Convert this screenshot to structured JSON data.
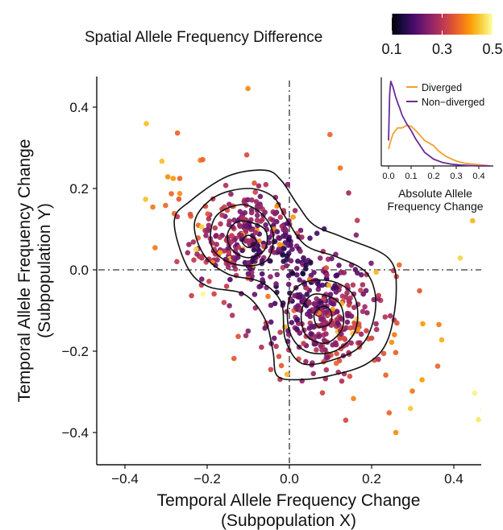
{
  "chart_data": {
    "type": "scatter",
    "xlabel_line1": "Temporal Allele Frequency Change",
    "xlabel_line2": "(Subpopulation X)",
    "ylabel_line1": "Temporal Allele Frequency Change",
    "ylabel_line2": "(Subpopulation Y)",
    "xlim": [
      -0.47,
      0.47
    ],
    "ylim": [
      -0.47,
      0.47
    ],
    "xticks": [
      -0.4,
      -0.2,
      0.0,
      0.2,
      0.4
    ],
    "yticks": [
      -0.4,
      -0.2,
      0.0,
      0.2,
      0.4
    ],
    "xtick_labels": [
      "−0.4",
      "−0.2",
      "0.0",
      "0.2",
      "0.4"
    ],
    "ytick_labels": [
      "−0.4",
      "−0.2",
      "0.0",
      "0.2",
      "0.4"
    ],
    "reference_lines": {
      "x": 0.0,
      "y": 0.0,
      "style": "dash-dot"
    },
    "colorbar": {
      "title": "Spatial Allele Frequency Difference",
      "range": [
        0.1,
        0.5
      ],
      "tick_values": [
        0.1,
        0.3,
        0.5
      ],
      "tick_labels": [
        "0.1",
        "0.3",
        "0.5"
      ],
      "colormap": "inferno",
      "stops": [
        "#000004",
        "#1b0c41",
        "#4a0c6b",
        "#781c6d",
        "#a52c60",
        "#cf4446",
        "#ed6925",
        "#fb9b06",
        "#f7d13d",
        "#fcffa4"
      ]
    },
    "clusters": [
      {
        "center": [
          -0.1,
          0.07
        ],
        "spread": [
          0.07,
          0.06
        ],
        "count": 260
      },
      {
        "center": [
          0.08,
          -0.11
        ],
        "spread": [
          0.06,
          0.07
        ],
        "count": 280
      }
    ],
    "scattered_background": {
      "x_range": [
        -0.33,
        0.46
      ],
      "y_range": [
        -0.38,
        0.46
      ],
      "count": 190
    },
    "contours": [
      {
        "level": 1,
        "points": [
          [
            -0.06,
            0.245
          ],
          [
            -0.15,
            0.23
          ],
          [
            -0.24,
            0.17
          ],
          [
            -0.28,
            0.12
          ],
          [
            -0.25,
            0.01
          ],
          [
            -0.2,
            -0.04
          ],
          [
            -0.11,
            -0.06
          ],
          [
            -0.06,
            -0.12
          ],
          [
            -0.04,
            -0.2
          ],
          [
            -0.03,
            -0.26
          ],
          [
            0.02,
            -0.27
          ],
          [
            0.1,
            -0.26
          ],
          [
            0.19,
            -0.23
          ],
          [
            0.24,
            -0.17
          ],
          [
            0.26,
            -0.05
          ],
          [
            0.24,
            0.03
          ],
          [
            0.13,
            0.08
          ],
          [
            0.06,
            0.11
          ],
          [
            0.02,
            0.16
          ],
          [
            -0.02,
            0.22
          ]
        ]
      },
      {
        "level": 2,
        "points": [
          [
            -0.1,
            0.2
          ],
          [
            -0.18,
            0.18
          ],
          [
            -0.23,
            0.12
          ],
          [
            -0.21,
            0.04
          ],
          [
            -0.15,
            -0.01
          ],
          [
            -0.07,
            -0.03
          ],
          [
            -0.02,
            -0.08
          ],
          [
            -0.01,
            -0.17
          ],
          [
            0.03,
            -0.23
          ],
          [
            0.11,
            -0.22
          ],
          [
            0.18,
            -0.18
          ],
          [
            0.21,
            -0.09
          ],
          [
            0.19,
            -0.01
          ],
          [
            0.12,
            0.03
          ],
          [
            0.04,
            0.06
          ],
          [
            -0.01,
            0.13
          ],
          [
            -0.04,
            0.18
          ]
        ]
      },
      {
        "level": 3,
        "points": [
          [
            -0.12,
            0.16
          ],
          [
            -0.18,
            0.13
          ],
          [
            -0.19,
            0.06
          ],
          [
            -0.15,
            0.02
          ],
          [
            -0.09,
            0.01
          ],
          [
            -0.05,
            0.03
          ],
          [
            -0.04,
            0.09
          ],
          [
            -0.07,
            0.14
          ]
        ]
      },
      {
        "level": 3,
        "points": [
          [
            0.04,
            -0.03
          ],
          [
            0.0,
            -0.07
          ],
          [
            0.0,
            -0.15
          ],
          [
            0.04,
            -0.2
          ],
          [
            0.11,
            -0.2
          ],
          [
            0.16,
            -0.15
          ],
          [
            0.16,
            -0.07
          ],
          [
            0.11,
            -0.03
          ]
        ]
      },
      {
        "level": 4,
        "points": [
          [
            -0.12,
            0.12
          ],
          [
            -0.15,
            0.09
          ],
          [
            -0.14,
            0.05
          ],
          [
            -0.1,
            0.03
          ],
          [
            -0.06,
            0.05
          ],
          [
            -0.06,
            0.1
          ]
        ]
      },
      {
        "level": 4,
        "points": [
          [
            0.06,
            -0.06
          ],
          [
            0.03,
            -0.1
          ],
          [
            0.04,
            -0.16
          ],
          [
            0.09,
            -0.18
          ],
          [
            0.13,
            -0.14
          ],
          [
            0.12,
            -0.08
          ]
        ]
      },
      {
        "level": 5,
        "points": [
          [
            -0.1,
            0.085
          ],
          [
            -0.115,
            0.07
          ],
          [
            -0.1,
            0.055
          ],
          [
            -0.08,
            0.07
          ]
        ]
      },
      {
        "level": 5,
        "points": [
          [
            0.08,
            -0.09
          ],
          [
            0.06,
            -0.11
          ],
          [
            0.07,
            -0.14
          ],
          [
            0.1,
            -0.13
          ],
          [
            0.1,
            -0.1
          ]
        ]
      }
    ],
    "inset": {
      "xlabel_line1": "Absolute Allele",
      "xlabel_line2": "Frequency Change",
      "xlim": [
        0,
        0.45
      ],
      "xticks": [
        0.0,
        0.1,
        0.2,
        0.3,
        0.4
      ],
      "xtick_labels": [
        "0.0",
        "0.1",
        "0.2",
        "0.3",
        "0.4"
      ],
      "series": [
        {
          "name": "Diverged",
          "color": "#f0a030",
          "x": [
            0.0,
            0.01,
            0.02,
            0.04,
            0.06,
            0.08,
            0.1,
            0.12,
            0.14,
            0.16,
            0.18,
            0.2,
            0.22,
            0.25,
            0.28,
            0.31,
            0.34,
            0.38,
            0.42,
            0.45
          ],
          "density": [
            0.2,
            0.3,
            0.38,
            0.45,
            0.45,
            0.48,
            0.47,
            0.42,
            0.36,
            0.3,
            0.27,
            0.24,
            0.18,
            0.12,
            0.08,
            0.05,
            0.03,
            0.02,
            0.01,
            0.0
          ]
        },
        {
          "name": "Non−diverged",
          "color": "#6a2a9a",
          "x": [
            0.0,
            0.005,
            0.01,
            0.02,
            0.03,
            0.04,
            0.05,
            0.06,
            0.08,
            0.1,
            0.12,
            0.14,
            0.16,
            0.2,
            0.24,
            0.28,
            0.32,
            0.36,
            0.4,
            0.45
          ],
          "density": [
            0.3,
            0.85,
            1.0,
            0.93,
            0.83,
            0.75,
            0.68,
            0.6,
            0.5,
            0.42,
            0.32,
            0.24,
            0.16,
            0.08,
            0.04,
            0.02,
            0.01,
            0.005,
            0.0,
            0.0
          ]
        }
      ]
    }
  }
}
